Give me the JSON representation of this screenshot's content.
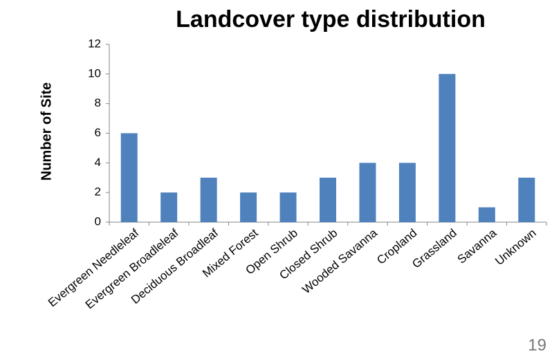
{
  "chart_data": {
    "type": "bar",
    "title": "Landcover type distribution",
    "y_label": "Number of Site",
    "categories": [
      "Evergreen Needleleaf",
      "Evergreen Broadleleaf",
      "Deciduous Broadleaf",
      "Mixed Forest",
      "Open Shrub",
      "Closed Shrub",
      "Wooded Savanna",
      "Cropland",
      "Grassland",
      "Savanna",
      "Unknown"
    ],
    "values": [
      6,
      2,
      3,
      2,
      2,
      3,
      4,
      4,
      10,
      1,
      3
    ],
    "color": "#4f81bd",
    "ylim": [
      0,
      12
    ],
    "yticks": [
      0,
      2,
      4,
      6,
      8,
      10,
      12
    ],
    "grid": false
  },
  "slide_number": "19"
}
